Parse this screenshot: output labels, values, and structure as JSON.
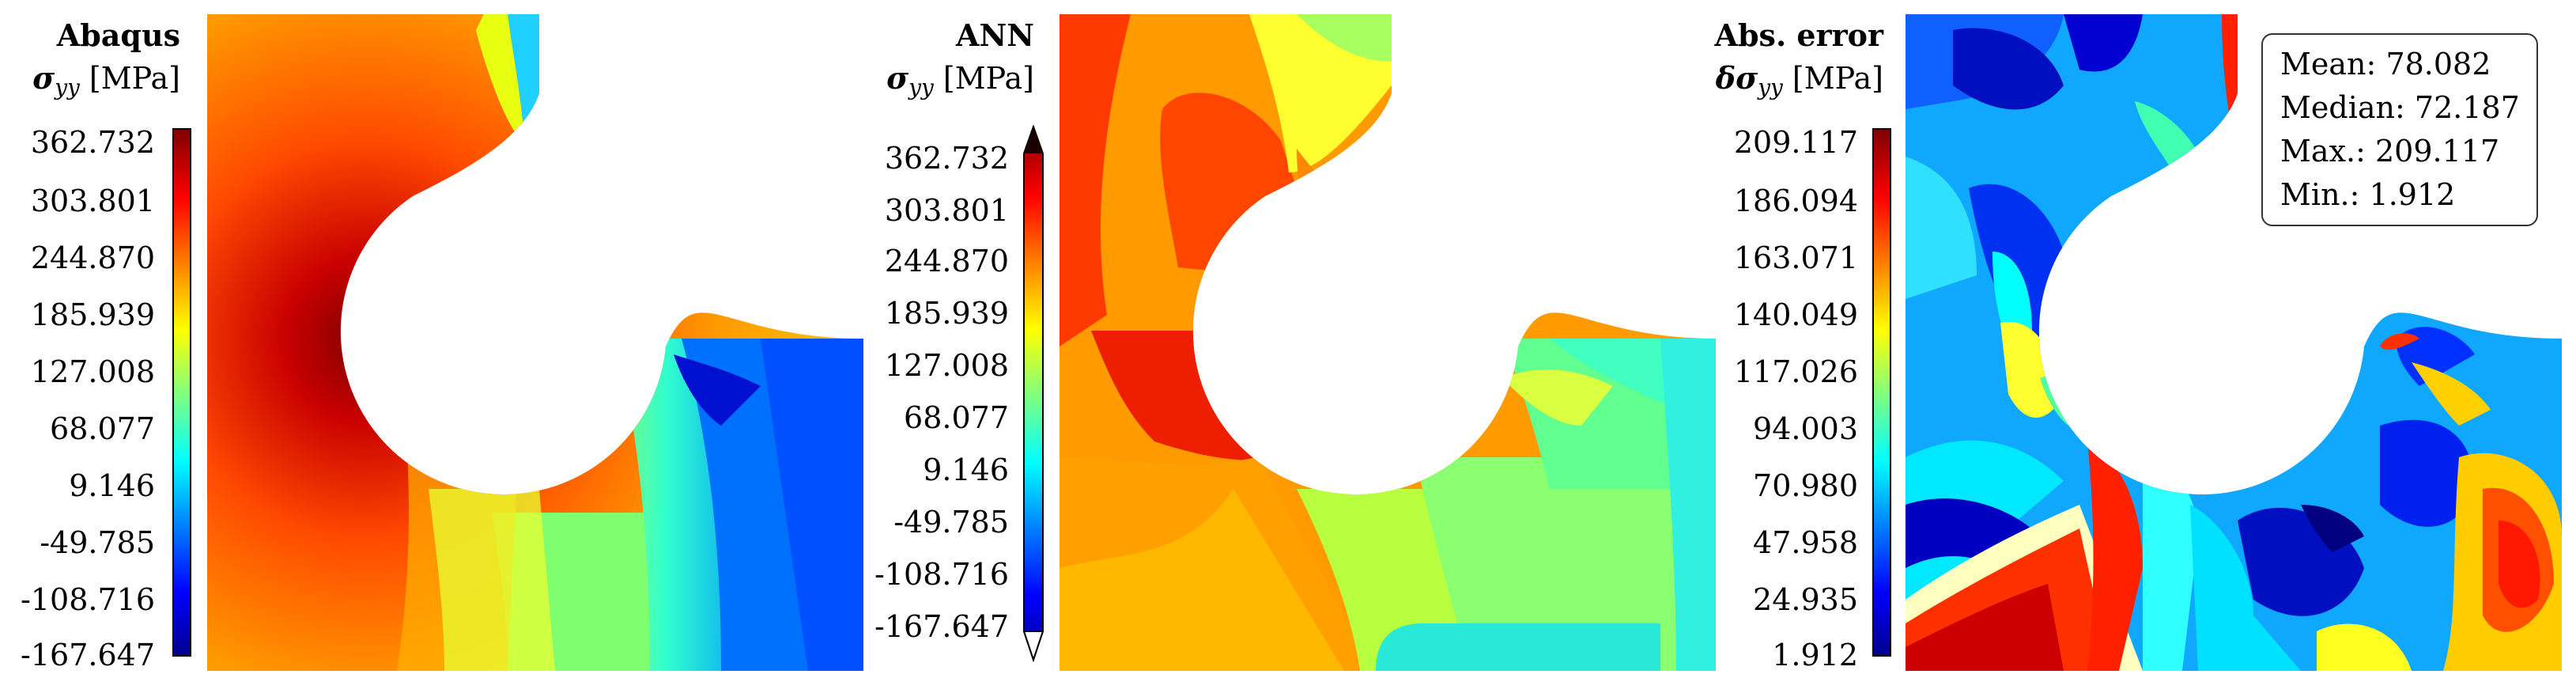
{
  "panels": [
    {
      "title": "Abaqus",
      "quantity": {
        "prefix": "",
        "symbol": "σ",
        "subscript": "yy",
        "unit": "[MPa]"
      },
      "colorbar_ticks": [
        "362.732",
        "303.801",
        "244.870",
        "185.939",
        "127.008",
        "68.077",
        "9.146",
        "-49.785",
        "-108.716",
        "-167.647"
      ],
      "colorbar_range": [
        -167.647,
        362.732
      ],
      "extend_arrows": false
    },
    {
      "title": "ANN",
      "quantity": {
        "prefix": "",
        "symbol": "σ",
        "subscript": "yy",
        "unit": "[MPa]"
      },
      "colorbar_ticks": [
        "362.732",
        "303.801",
        "244.870",
        "185.939",
        "127.008",
        "68.077",
        "9.146",
        "-49.785",
        "-108.716",
        "-167.647"
      ],
      "colorbar_range": [
        -167.647,
        362.732
      ],
      "extend_arrows": true
    },
    {
      "title": "Abs. error",
      "quantity": {
        "prefix": "δ",
        "symbol": "σ",
        "subscript": "yy",
        "unit": "[MPa]"
      },
      "colorbar_ticks": [
        "209.117",
        "186.094",
        "163.071",
        "140.049",
        "117.026",
        "94.003",
        "70.980",
        "47.958",
        "24.935",
        "1.912"
      ],
      "colorbar_range": [
        1.912,
        209.117
      ],
      "extend_arrows": false
    }
  ],
  "stats": [
    {
      "label": "Mean:",
      "value": "78.082"
    },
    {
      "label": "Median:",
      "value": "72.187"
    },
    {
      "label": "Max.:",
      "value": "209.117"
    },
    {
      "label": "Min.:",
      "value": "1.912"
    }
  ],
  "colormap": "jet",
  "colors": {
    "jet": [
      "#00008f",
      "#0000ff",
      "#00ffff",
      "#ffff00",
      "#ff0000",
      "#800000"
    ]
  }
}
